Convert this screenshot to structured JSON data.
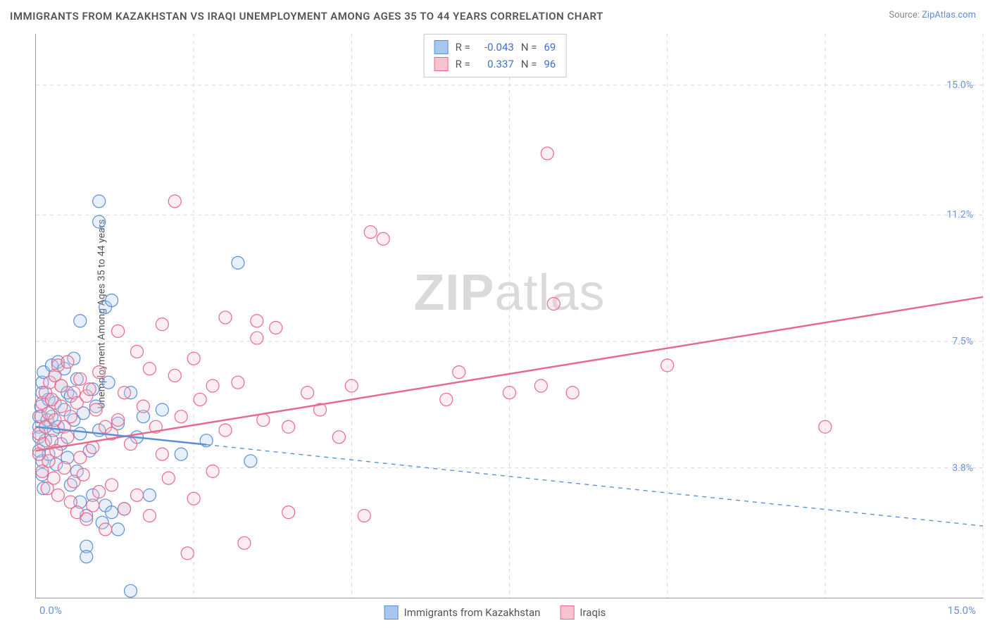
{
  "title": "IMMIGRANTS FROM KAZAKHSTAN VS IRAQI UNEMPLOYMENT AMONG AGES 35 TO 44 YEARS CORRELATION CHART",
  "source_label": "Source: ",
  "source_link": "ZipAtlas.com",
  "ylabel": "Unemployment Among Ages 35 to 44 years",
  "watermark_a": "ZIP",
  "watermark_b": "atlas",
  "chart": {
    "type": "scatter",
    "background_color": "#ffffff",
    "grid_color": "#d8d8d8",
    "axis_color": "#999999",
    "label_color_axis": "#6b93d6",
    "title_fontsize": 15,
    "label_fontsize": 14,
    "xlim": [
      0,
      15
    ],
    "ylim": [
      0,
      16.5
    ],
    "x_ticks_labels": {
      "min": "0.0%",
      "max": "15.0%"
    },
    "y_ticks": [
      {
        "v": 3.8,
        "label": "3.8%"
      },
      {
        "v": 7.5,
        "label": "7.5%"
      },
      {
        "v": 11.2,
        "label": "11.2%"
      },
      {
        "v": 15.0,
        "label": "15.0%"
      }
    ],
    "x_grid_vals": [
      0,
      2.5,
      5.0,
      7.5,
      10.0,
      12.5,
      15.0
    ],
    "marker_radius": 9,
    "marker_stroke_width": 1.2,
    "marker_fill_opacity": 0.28,
    "line_width": 2.5,
    "series": [
      {
        "id": "kazakhstan",
        "label": "Immigrants from Kazakhstan",
        "fill": "#a9c7ec",
        "stroke": "#5b8fd6",
        "R": "-0.043",
        "N": "69",
        "trend": {
          "x1": 0,
          "y1": 5.0,
          "x2": 15,
          "y2": 2.1,
          "solid_until_x": 2.7,
          "dash": "6,6"
        },
        "points": [
          [
            0.05,
            5.0
          ],
          [
            0.05,
            4.7
          ],
          [
            0.05,
            4.3
          ],
          [
            0.05,
            5.3
          ],
          [
            0.08,
            5.6
          ],
          [
            0.1,
            6.0
          ],
          [
            0.1,
            6.3
          ],
          [
            0.12,
            6.6
          ],
          [
            0.1,
            4.0
          ],
          [
            0.1,
            3.6
          ],
          [
            0.12,
            3.2
          ],
          [
            0.15,
            5.0
          ],
          [
            0.15,
            4.6
          ],
          [
            0.18,
            5.2
          ],
          [
            0.2,
            5.8
          ],
          [
            0.2,
            4.2
          ],
          [
            0.25,
            6.8
          ],
          [
            0.25,
            5.3
          ],
          [
            0.28,
            4.9
          ],
          [
            0.3,
            6.5
          ],
          [
            0.3,
            5.7
          ],
          [
            0.32,
            3.9
          ],
          [
            0.35,
            6.9
          ],
          [
            0.35,
            5.0
          ],
          [
            0.4,
            6.2
          ],
          [
            0.4,
            4.5
          ],
          [
            0.45,
            6.7
          ],
          [
            0.45,
            5.5
          ],
          [
            0.5,
            4.1
          ],
          [
            0.5,
            6.0
          ],
          [
            0.55,
            3.3
          ],
          [
            0.55,
            5.9
          ],
          [
            0.6,
            7.0
          ],
          [
            0.6,
            5.2
          ],
          [
            0.65,
            6.4
          ],
          [
            0.65,
            3.7
          ],
          [
            0.7,
            4.8
          ],
          [
            0.7,
            2.8
          ],
          [
            0.7,
            8.1
          ],
          [
            0.75,
            5.4
          ],
          [
            0.8,
            2.4
          ],
          [
            0.8,
            1.5
          ],
          [
            0.8,
            1.2
          ],
          [
            0.85,
            4.3
          ],
          [
            0.9,
            6.1
          ],
          [
            0.9,
            3.0
          ],
          [
            0.95,
            5.6
          ],
          [
            1.0,
            11.0
          ],
          [
            1.0,
            11.6
          ],
          [
            1.0,
            4.9
          ],
          [
            1.05,
            2.2
          ],
          [
            1.1,
            8.5
          ],
          [
            1.1,
            2.7
          ],
          [
            1.15,
            6.3
          ],
          [
            1.2,
            8.7
          ],
          [
            1.2,
            2.5
          ],
          [
            1.3,
            5.1
          ],
          [
            1.3,
            2.0
          ],
          [
            1.4,
            2.6
          ],
          [
            1.5,
            6.0
          ],
          [
            1.5,
            0.2
          ],
          [
            1.6,
            4.7
          ],
          [
            1.7,
            5.3
          ],
          [
            1.8,
            3.0
          ],
          [
            2.0,
            5.5
          ],
          [
            2.3,
            4.2
          ],
          [
            2.7,
            4.6
          ],
          [
            3.2,
            9.8
          ],
          [
            3.4,
            4.0
          ]
        ]
      },
      {
        "id": "iraqis",
        "label": "Iraqis",
        "fill": "#f6c3cf",
        "stroke": "#e86a8a",
        "R": "0.337",
        "N": "96",
        "trend": {
          "x1": 0,
          "y1": 4.3,
          "x2": 15,
          "y2": 8.8,
          "solid_until_x": 15,
          "dash": null
        },
        "points": [
          [
            0.05,
            4.2
          ],
          [
            0.05,
            4.8
          ],
          [
            0.08,
            5.3
          ],
          [
            0.1,
            3.7
          ],
          [
            0.1,
            5.7
          ],
          [
            0.12,
            4.5
          ],
          [
            0.15,
            5.0
          ],
          [
            0.15,
            6.0
          ],
          [
            0.18,
            3.2
          ],
          [
            0.2,
            5.4
          ],
          [
            0.2,
            4.0
          ],
          [
            0.22,
            6.3
          ],
          [
            0.25,
            5.8
          ],
          [
            0.25,
            4.6
          ],
          [
            0.28,
            3.5
          ],
          [
            0.3,
            6.5
          ],
          [
            0.3,
            5.2
          ],
          [
            0.32,
            4.3
          ],
          [
            0.35,
            6.8
          ],
          [
            0.35,
            3.0
          ],
          [
            0.4,
            5.6
          ],
          [
            0.4,
            6.2
          ],
          [
            0.45,
            3.8
          ],
          [
            0.45,
            5.0
          ],
          [
            0.5,
            6.9
          ],
          [
            0.5,
            4.7
          ],
          [
            0.55,
            2.8
          ],
          [
            0.55,
            5.3
          ],
          [
            0.6,
            6.0
          ],
          [
            0.6,
            3.4
          ],
          [
            0.65,
            5.7
          ],
          [
            0.65,
            2.5
          ],
          [
            0.7,
            6.4
          ],
          [
            0.7,
            4.1
          ],
          [
            0.75,
            3.6
          ],
          [
            0.8,
            5.9
          ],
          [
            0.8,
            2.3
          ],
          [
            0.85,
            6.1
          ],
          [
            0.9,
            4.4
          ],
          [
            0.9,
            2.7
          ],
          [
            0.95,
            5.5
          ],
          [
            1.0,
            3.1
          ],
          [
            1.0,
            6.6
          ],
          [
            1.1,
            2.0
          ],
          [
            1.1,
            5.0
          ],
          [
            1.2,
            4.8
          ],
          [
            1.2,
            3.3
          ],
          [
            1.3,
            7.8
          ],
          [
            1.3,
            5.2
          ],
          [
            1.4,
            6.0
          ],
          [
            1.4,
            2.6
          ],
          [
            1.5,
            4.5
          ],
          [
            1.6,
            7.2
          ],
          [
            1.6,
            3.0
          ],
          [
            1.7,
            5.6
          ],
          [
            1.8,
            6.7
          ],
          [
            1.8,
            2.4
          ],
          [
            1.9,
            5.0
          ],
          [
            2.0,
            4.2
          ],
          [
            2.0,
            8.0
          ],
          [
            2.1,
            3.5
          ],
          [
            2.2,
            6.5
          ],
          [
            2.2,
            11.6
          ],
          [
            2.3,
            5.3
          ],
          [
            2.4,
            1.3
          ],
          [
            2.5,
            7.0
          ],
          [
            2.5,
            2.9
          ],
          [
            2.6,
            5.8
          ],
          [
            2.8,
            6.2
          ],
          [
            2.8,
            3.7
          ],
          [
            3.0,
            4.9
          ],
          [
            3.0,
            8.2
          ],
          [
            3.2,
            6.3
          ],
          [
            3.3,
            1.6
          ],
          [
            3.5,
            7.6
          ],
          [
            3.5,
            8.1
          ],
          [
            3.6,
            5.2
          ],
          [
            3.8,
            7.9
          ],
          [
            4.0,
            5.0
          ],
          [
            4.0,
            2.5
          ],
          [
            4.3,
            6.0
          ],
          [
            4.5,
            5.5
          ],
          [
            4.8,
            4.7
          ],
          [
            5.0,
            6.2
          ],
          [
            5.2,
            2.4
          ],
          [
            5.3,
            10.7
          ],
          [
            5.5,
            10.5
          ],
          [
            6.5,
            5.8
          ],
          [
            6.7,
            6.6
          ],
          [
            7.5,
            6.0
          ],
          [
            8.0,
            6.2
          ],
          [
            8.1,
            13.0
          ],
          [
            8.2,
            8.6
          ],
          [
            8.5,
            6.0
          ],
          [
            10.0,
            6.8
          ],
          [
            12.5,
            5.0
          ]
        ]
      }
    ]
  },
  "legend": {
    "stats_labels": {
      "R": "R =",
      "N": "N ="
    }
  }
}
